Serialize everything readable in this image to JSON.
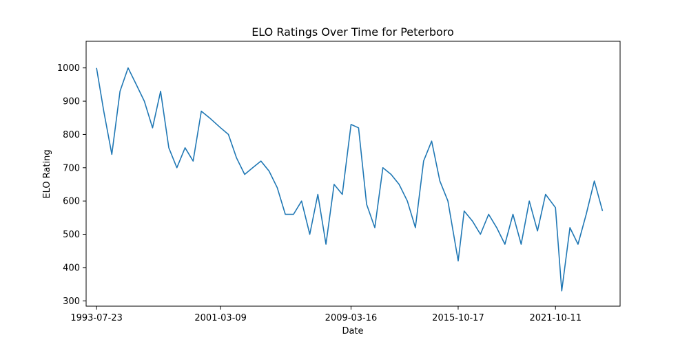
{
  "chart_data": {
    "type": "line",
    "title": "ELO Ratings Over Time for Peterboro",
    "xlabel": "Date",
    "ylabel": "ELO Rating",
    "x_range": [
      "1992-12-01",
      "2025-10-01"
    ],
    "ylim": [
      284,
      1080
    ],
    "x_ticks": [
      "1993-07-23",
      "2001-03-09",
      "2009-03-16",
      "2015-10-17",
      "2021-10-11"
    ],
    "y_ticks": [
      300,
      400,
      500,
      600,
      700,
      800,
      900,
      1000
    ],
    "grid": false,
    "legend": "none",
    "color": "#1f77b4",
    "series": [
      {
        "x": [
          "1993-07-23",
          "1994-01-01",
          "1994-07-01",
          "1995-01-01",
          "1995-07-01",
          "1996-01-01",
          "1996-07-01",
          "1997-01-01",
          "1997-07-01",
          "1998-01-01",
          "1998-07-01",
          "1999-01-01",
          "1999-07-01",
          "2000-01-01",
          "2000-07-01",
          "2001-03-09",
          "2001-09-01",
          "2002-03-01",
          "2002-09-01",
          "2003-03-01",
          "2003-09-01",
          "2004-03-01",
          "2004-09-01",
          "2005-03-01",
          "2005-09-01",
          "2006-03-01",
          "2006-09-01",
          "2007-03-01",
          "2007-09-01",
          "2008-03-01",
          "2008-09-01",
          "2009-03-16",
          "2009-09-01",
          "2010-03-01",
          "2010-09-01",
          "2011-03-01",
          "2011-09-01",
          "2012-03-01",
          "2012-09-01",
          "2013-03-01",
          "2013-09-01",
          "2014-03-01",
          "2014-09-01",
          "2015-03-01",
          "2015-10-17",
          "2016-03-01",
          "2016-09-01",
          "2017-03-01",
          "2017-09-01",
          "2018-03-01",
          "2018-09-01",
          "2019-03-01",
          "2019-09-01",
          "2020-03-01",
          "2020-09-01",
          "2021-03-01",
          "2021-10-11",
          "2022-03-01",
          "2022-09-01",
          "2023-03-01",
          "2023-09-01",
          "2024-03-01",
          "2024-09-01"
        ],
        "y": [
          1000,
          870,
          740,
          930,
          1000,
          950,
          900,
          820,
          930,
          760,
          700,
          760,
          720,
          870,
          850,
          820,
          800,
          730,
          680,
          700,
          720,
          690,
          640,
          560,
          560,
          600,
          500,
          620,
          470,
          650,
          620,
          830,
          820,
          590,
          520,
          700,
          680,
          650,
          600,
          520,
          720,
          780,
          660,
          600,
          420,
          570,
          540,
          500,
          560,
          520,
          470,
          560,
          470,
          600,
          510,
          620,
          580,
          330,
          520,
          470,
          560,
          660,
          570
        ]
      }
    ]
  }
}
